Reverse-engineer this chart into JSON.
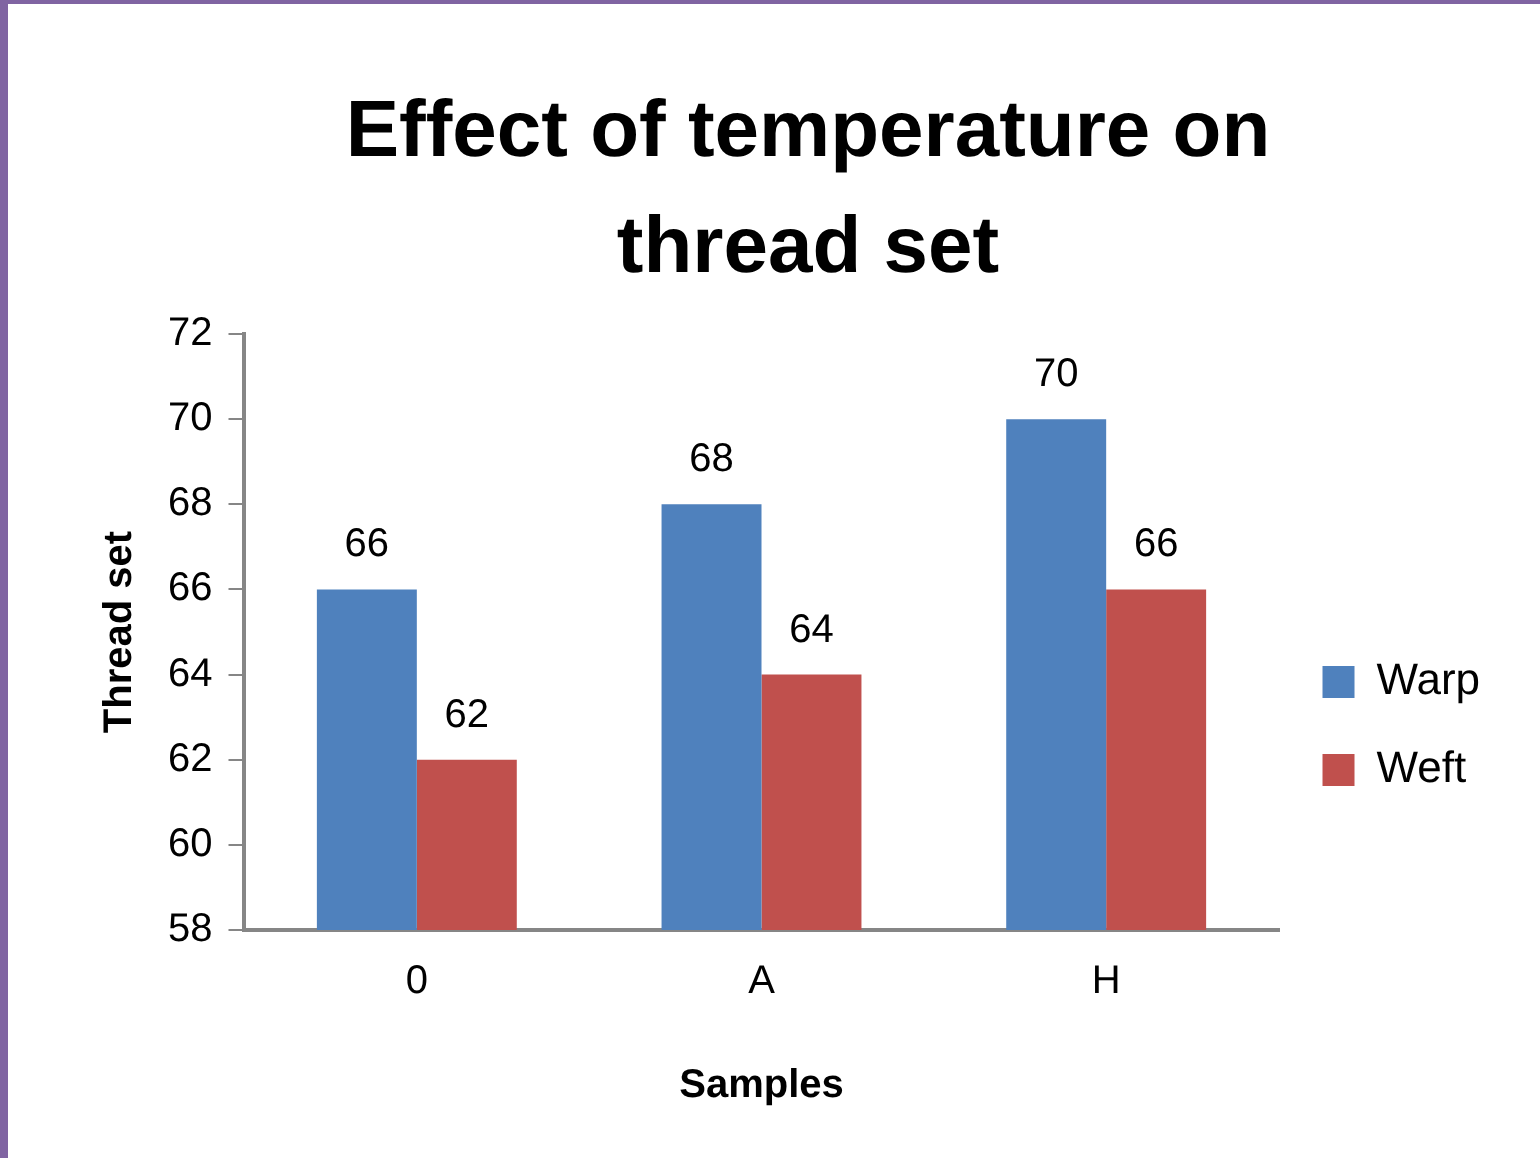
{
  "chart_data": {
    "type": "bar",
    "title": "Effect of temperature on thread set",
    "xlabel": "Samples",
    "ylabel": "Thread set",
    "categories": [
      "0",
      "A",
      "H"
    ],
    "series": [
      {
        "name": "Warp",
        "color": "#4f81bd",
        "values": [
          66,
          68,
          70
        ]
      },
      {
        "name": "Weft",
        "color": "#c0504d",
        "values": [
          62,
          64,
          66
        ]
      }
    ],
    "ylim": [
      58,
      72
    ],
    "yticks": [
      58,
      60,
      62,
      64,
      66,
      68,
      70,
      72
    ],
    "grid": false,
    "legend": "right",
    "data_labels": true
  }
}
